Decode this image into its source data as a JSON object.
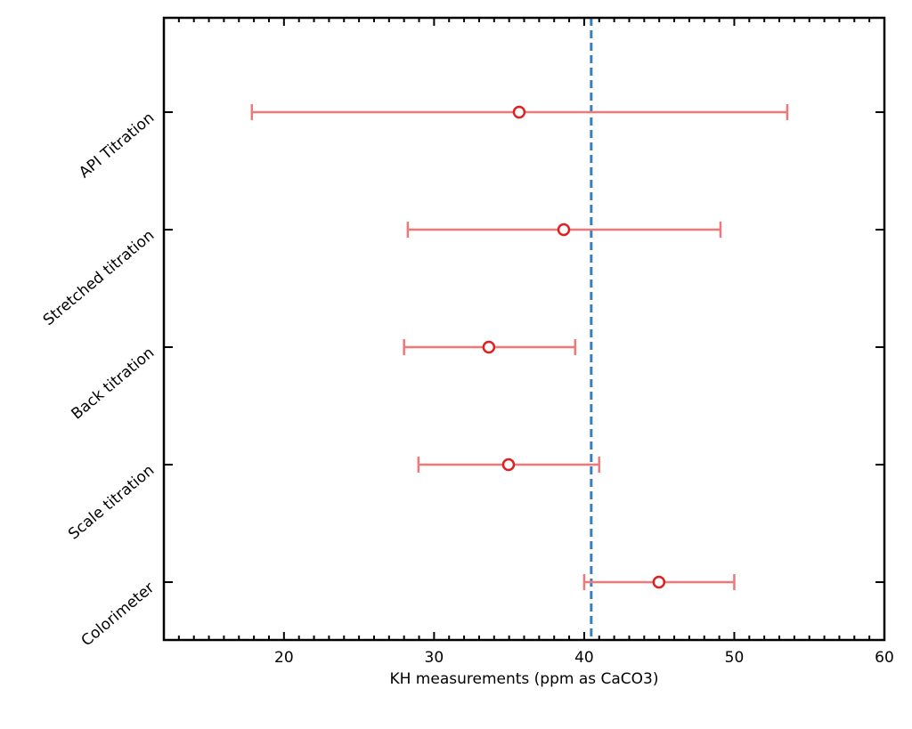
{
  "chart_data": {
    "type": "errorbar",
    "title": "",
    "xlabel": "KH measurements (ppm as CaCO3)",
    "ylabel": "",
    "xlim": [
      12,
      60
    ],
    "xticks": [
      20,
      30,
      40,
      50,
      60
    ],
    "xtick_labels": [
      "20",
      "30",
      "40",
      "50",
      "60"
    ],
    "grid": false,
    "categories": [
      "Colorimeter",
      "Scale titration",
      "Back titration",
      "Stretched titration",
      "API Titration"
    ],
    "series": [
      {
        "name": "KH measurements",
        "values": [
          44.98,
          34.96,
          33.65,
          38.64,
          35.67
        ],
        "lower": [
          40.0,
          28.96,
          28.0,
          28.25,
          17.86
        ],
        "upper": [
          50.0,
          41.0,
          39.4,
          49.08,
          53.53
        ]
      }
    ],
    "reference_line": {
      "value": 40.47,
      "style": "dashed"
    },
    "colors": {
      "errorbar": "#f07878",
      "marker": "#e02020",
      "reference": "#3a7fba",
      "axis": "#000000"
    }
  }
}
